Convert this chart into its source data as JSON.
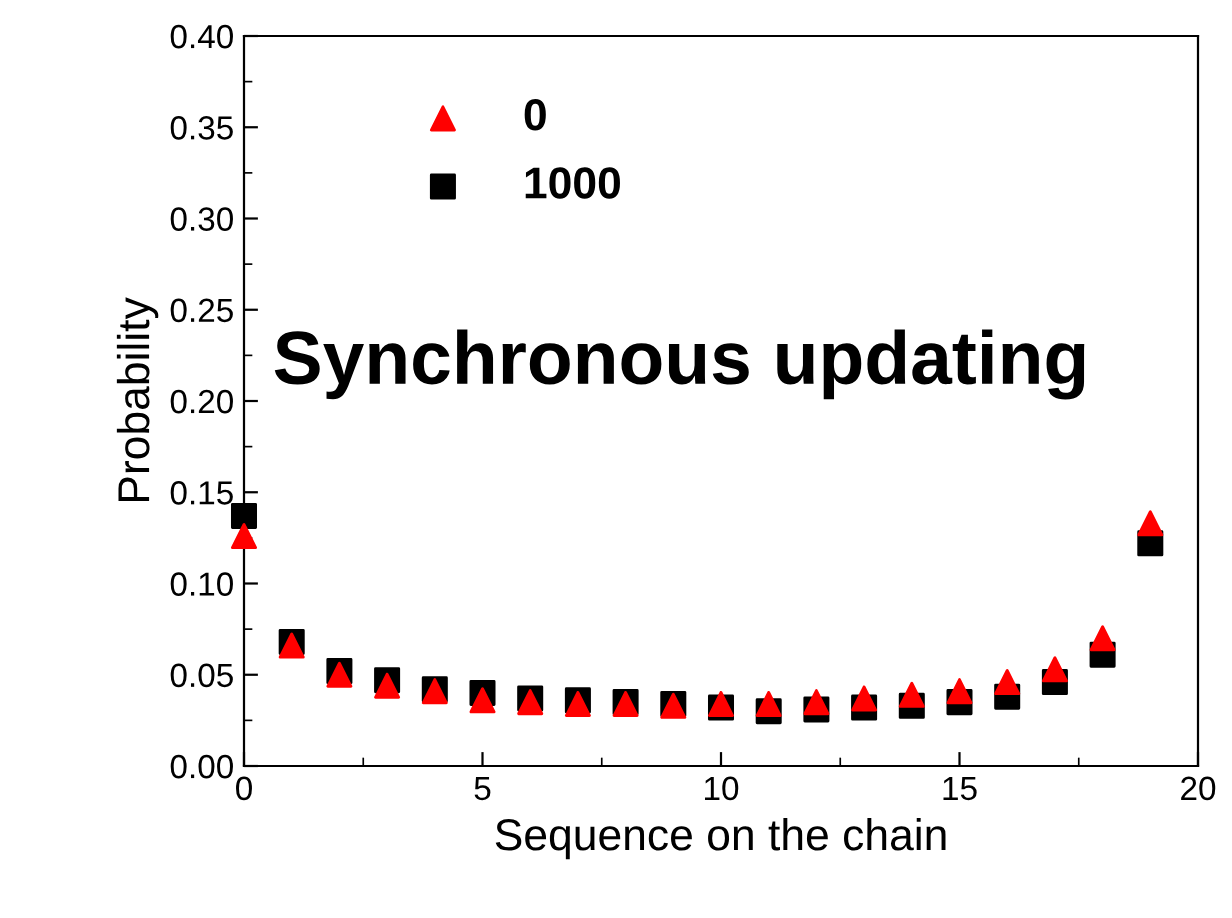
{
  "chart_data": {
    "type": "scatter",
    "xlabel": "Sequence on the chain",
    "ylabel": "Probability",
    "x": [
      0,
      1,
      2,
      3,
      4,
      5,
      6,
      7,
      8,
      9,
      10,
      11,
      12,
      13,
      14,
      15,
      16,
      17,
      18,
      19
    ],
    "series": [
      {
        "name": "1000",
        "color": "#000000",
        "marker": "square",
        "values": [
          0.137,
          0.068,
          0.052,
          0.047,
          0.042,
          0.04,
          0.037,
          0.036,
          0.035,
          0.034,
          0.032,
          0.03,
          0.031,
          0.032,
          0.033,
          0.035,
          0.038,
          0.046,
          0.061,
          0.122
        ]
      },
      {
        "name": "0",
        "color": "#ff0000",
        "marker": "triangle",
        "values": [
          0.126,
          0.066,
          0.05,
          0.044,
          0.041,
          0.036,
          0.035,
          0.034,
          0.034,
          0.033,
          0.034,
          0.034,
          0.035,
          0.037,
          0.039,
          0.041,
          0.046,
          0.053,
          0.07,
          0.133
        ]
      }
    ],
    "annotations": [
      "Synchronous updating"
    ],
    "xlim": [
      0,
      20
    ],
    "xticks": [
      0,
      5,
      10,
      15,
      20
    ],
    "ylim": [
      0,
      0.4
    ],
    "yticks": [
      {
        "value": 0,
        "label": "0.00"
      },
      {
        "value": 0.05,
        "label": "0.05"
      },
      {
        "value": 0.1,
        "label": "0.10"
      },
      {
        "value": 0.15,
        "label": "0.15"
      },
      {
        "value": 0.2,
        "label": "0.20"
      },
      {
        "value": 0.25,
        "label": "0.25"
      },
      {
        "value": 0.3,
        "label": "0.30"
      },
      {
        "value": 0.35,
        "label": "0.35"
      },
      {
        "value": 0.4,
        "label": "0.40"
      }
    ],
    "grid": false,
    "legend": "top left"
  }
}
